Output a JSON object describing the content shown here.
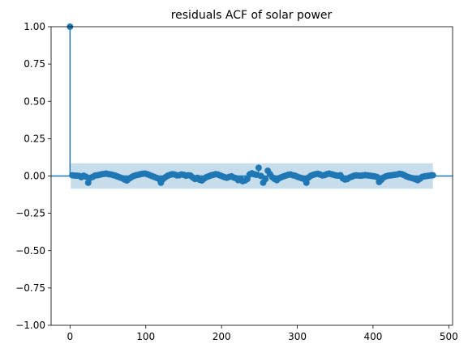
{
  "chart_data": {
    "type": "scatter",
    "subtype": "acf-stem",
    "title": "residuals ACF of solar power",
    "xlabel": "",
    "ylabel": "",
    "xlim": [
      -25,
      505
    ],
    "ylim": [
      -1.0,
      1.0
    ],
    "xticks": [
      0,
      100,
      200,
      300,
      400,
      500
    ],
    "yticks": [
      -1.0,
      -0.75,
      -0.5,
      -0.25,
      0.0,
      0.25,
      0.5,
      0.75,
      1.0
    ],
    "xtick_labels": [
      "0",
      "100",
      "200",
      "300",
      "400",
      "500"
    ],
    "ytick_labels": [
      "−1.00",
      "−0.75",
      "−0.50",
      "−0.25",
      "0.00",
      "0.25",
      "0.50",
      "0.75",
      "1.00"
    ],
    "grid": false,
    "legend": "none",
    "series_color": "#1f77b4",
    "confidence_band": {
      "x_start": 1,
      "x_end": 479,
      "lower": -0.085,
      "upper": 0.085,
      "color": "#1f77b4",
      "opacity": 0.25
    },
    "zero_line": 0.0,
    "lags": [
      0,
      3,
      6,
      9,
      12,
      15,
      18,
      21,
      24,
      27,
      30,
      33,
      36,
      39,
      42,
      45,
      48,
      51,
      54,
      57,
      60,
      63,
      66,
      69,
      72,
      75,
      78,
      81,
      84,
      87,
      90,
      93,
      96,
      99,
      102,
      105,
      108,
      111,
      114,
      117,
      120,
      123,
      126,
      129,
      132,
      135,
      138,
      141,
      144,
      147,
      150,
      153,
      156,
      159,
      162,
      165,
      168,
      171,
      174,
      177,
      180,
      183,
      186,
      189,
      192,
      195,
      198,
      201,
      204,
      207,
      210,
      213,
      216,
      219,
      222,
      225,
      228,
      231,
      234,
      237,
      240,
      243,
      246,
      249,
      252,
      255,
      258,
      261,
      264,
      267,
      270,
      273,
      276,
      279,
      282,
      285,
      288,
      291,
      294,
      297,
      300,
      303,
      306,
      309,
      312,
      315,
      318,
      321,
      324,
      327,
      330,
      333,
      336,
      339,
      342,
      345,
      348,
      351,
      354,
      357,
      360,
      363,
      366,
      369,
      372,
      375,
      378,
      381,
      384,
      387,
      390,
      393,
      396,
      399,
      402,
      405,
      408,
      411,
      414,
      417,
      420,
      423,
      426,
      429,
      432,
      435,
      438,
      441,
      444,
      447,
      450,
      453,
      456,
      459,
      462,
      465,
      468,
      471,
      474,
      477,
      479
    ],
    "values": [
      1.0,
      0.005,
      0.003,
      0.002,
      0.001,
      -0.008,
      0.002,
      -0.005,
      -0.045,
      -0.012,
      -0.006,
      0.003,
      0.005,
      0.008,
      0.012,
      0.014,
      0.016,
      0.012,
      0.01,
      0.006,
      0.002,
      -0.004,
      -0.01,
      -0.015,
      -0.024,
      -0.03,
      -0.018,
      -0.008,
      0.0,
      0.005,
      0.008,
      0.012,
      0.015,
      0.016,
      0.012,
      0.006,
      0.0,
      -0.006,
      -0.012,
      -0.018,
      -0.045,
      -0.02,
      -0.008,
      0.002,
      0.008,
      0.012,
      0.01,
      0.004,
      0.005,
      0.01,
      0.008,
      0.002,
      0.005,
      0.003,
      -0.01,
      -0.02,
      -0.012,
      -0.025,
      -0.03,
      -0.018,
      -0.008,
      -0.002,
      0.004,
      0.008,
      0.012,
      0.01,
      0.004,
      -0.002,
      -0.008,
      -0.012,
      -0.006,
      -0.002,
      -0.01,
      -0.015,
      -0.028,
      -0.02,
      -0.035,
      -0.03,
      -0.02,
      0.01,
      0.018,
      0.012,
      0.008,
      0.055,
      0.0,
      -0.045,
      -0.02,
      0.035,
      0.012,
      -0.008,
      -0.02,
      -0.028,
      -0.015,
      -0.008,
      -0.002,
      0.003,
      0.008,
      0.01,
      0.005,
      0.002,
      -0.005,
      -0.01,
      -0.015,
      -0.02,
      -0.045,
      -0.01,
      0.002,
      0.008,
      0.012,
      0.015,
      0.01,
      0.004,
      0.006,
      0.012,
      0.016,
      0.012,
      0.008,
      0.004,
      0.002,
      0.005,
      -0.015,
      -0.024,
      -0.02,
      -0.01,
      -0.005,
      0.002,
      0.004,
      0.003,
      0.002,
      0.004,
      0.006,
      0.004,
      0.002,
      0.0,
      -0.003,
      -0.006,
      -0.04,
      -0.025,
      -0.01,
      -0.002,
      0.002,
      0.004,
      0.006,
      0.008,
      0.01,
      0.015,
      0.012,
      0.006,
      -0.002,
      -0.008,
      -0.012,
      -0.016,
      -0.022,
      -0.028,
      -0.018,
      -0.006,
      -0.002,
      0.0,
      0.002,
      0.004,
      0.005
    ]
  }
}
